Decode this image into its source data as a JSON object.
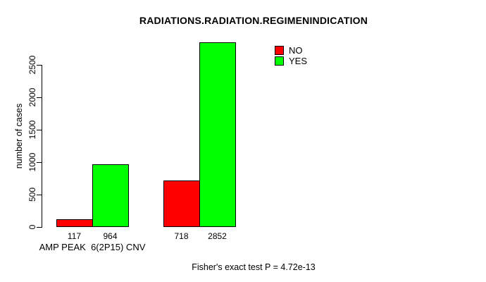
{
  "chart_data": {
    "type": "bar",
    "title": "RADIATIONS.RADIATION.REGIMENINDICATION",
    "ylabel": "number of cases",
    "xlabel": "AMP PEAK  6(2P15) CNV",
    "ylim": [
      0,
      2900
    ],
    "yticks": [
      0,
      500,
      1000,
      1500,
      2000,
      2500
    ],
    "grid": false,
    "legend_position": "top-right",
    "series": [
      {
        "name": "NO",
        "color": "#ff0000"
      },
      {
        "name": "YES",
        "color": "#00ff00"
      }
    ],
    "groups": [
      {
        "label": "AMP PEAK  6(2P15) CNV",
        "values": [
          117,
          964
        ]
      },
      {
        "label": "",
        "values": [
          718,
          2852
        ]
      }
    ],
    "annotation": "Fisher's exact test P = 4.72e-13"
  }
}
